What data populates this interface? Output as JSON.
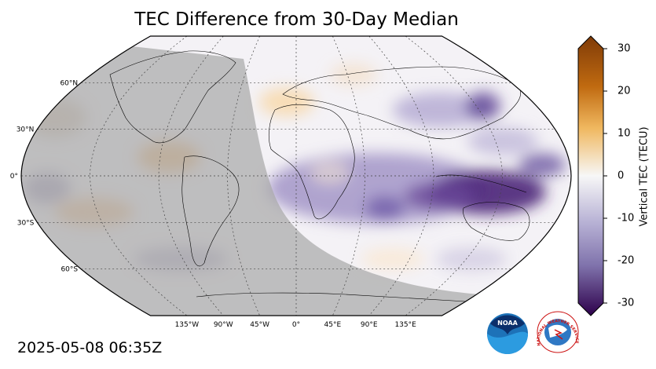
{
  "title": "TEC Difference from 30-Day Median",
  "timestamp": "2025-05-08 06:35Z",
  "colorbar": {
    "label": "Vertical TEC (TECU)",
    "min": -30,
    "max": 30,
    "ticks": [
      "30",
      "20",
      "10",
      "0",
      "-10",
      "-20",
      "-30"
    ],
    "tick_values": [
      30,
      20,
      10,
      0,
      -10,
      -20,
      -30
    ],
    "colors": {
      "positive_max": "#7f3b08",
      "positive_mid": "#e08214",
      "neutral": "#f7f7f7",
      "negative_mid": "#8073ac",
      "negative_max": "#2d004b"
    }
  },
  "map": {
    "projection": "Robinson",
    "night_shade": "#b0b0b0",
    "lat_labels": [
      "60°N",
      "30°N",
      "0°",
      "30°S",
      "60°S"
    ],
    "lat_values": [
      60,
      30,
      0,
      -30,
      -60
    ],
    "lon_labels": [
      "135°W",
      "90°W",
      "45°W",
      "0°",
      "45°E",
      "90°E",
      "135°E"
    ],
    "lon_values": [
      -135,
      -90,
      -45,
      0,
      45,
      90,
      135
    ]
  },
  "logos": {
    "noaa": "NOAA",
    "nws": "NATIONAL WEATHER SERVICE"
  }
}
